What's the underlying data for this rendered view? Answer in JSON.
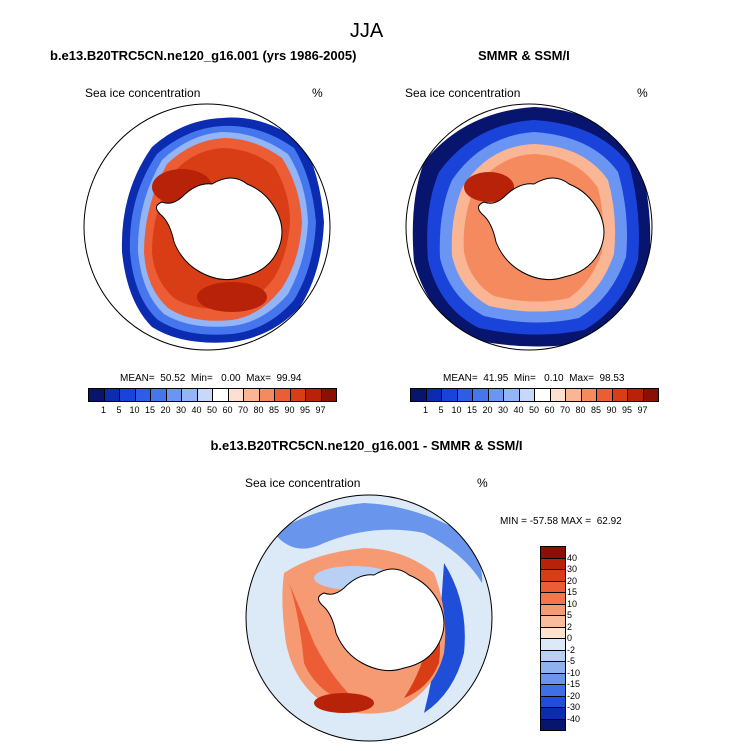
{
  "title": "JJA",
  "panels": [
    {
      "title": "b.e13.B20TRC5CN.ne120_g16.001 (yrs 1986-2005)",
      "variable_label": "Sea ice concentration",
      "unit": "%",
      "stats": "MEAN=  50.52  Min=   0.00  Max=  99.94"
    },
    {
      "title": "SMMR & SSM/I",
      "variable_label": "Sea ice concentration",
      "unit": "%",
      "stats": "MEAN=  41.95  Min=   0.10  Max=  98.53"
    },
    {
      "title": "b.e13.B20TRC5CN.ne120_g16.001 - SMMR & SSM/I",
      "variable_label": "Sea ice concentration",
      "unit": "%",
      "stats": "MIN = -57.58 MAX =  62.92"
    }
  ],
  "colorbar_concentration": {
    "labels": [
      "1",
      "5",
      "10",
      "15",
      "20",
      "30",
      "40",
      "50",
      "60",
      "70",
      "80",
      "85",
      "90",
      "95",
      "97"
    ],
    "colors": [
      "#08156f",
      "#0b2cb0",
      "#1a44d9",
      "#2e5ce6",
      "#4676ee",
      "#6a95f2",
      "#93b4f5",
      "#c6d9fa",
      "#ffffff",
      "#fde0cf",
      "#f9b594",
      "#f58a5f",
      "#ec5d35",
      "#d93d16",
      "#b82209",
      "#8b0f03"
    ]
  },
  "colorbar_difference": {
    "labels": [
      "40",
      "30",
      "20",
      "15",
      "10",
      "5",
      "2",
      "0",
      "-2",
      "-5",
      "-10",
      "-15",
      "-20",
      "-30",
      "-40"
    ],
    "colors": [
      "#8b0f03",
      "#b82209",
      "#d93d16",
      "#ec5d35",
      "#f2774a",
      "#f59a72",
      "#f9bd9d",
      "#fde2d2",
      "#dce9f7",
      "#b8d0f3",
      "#8fb1ef",
      "#6a95ec",
      "#3f6fe6",
      "#1f4ed8",
      "#0b2cb0",
      "#08156f"
    ]
  }
}
